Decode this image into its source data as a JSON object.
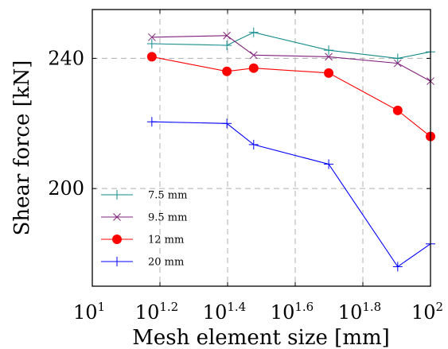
{
  "chart_data": {
    "type": "line",
    "xlabel": "Mesh element size [mm]",
    "ylabel": "Shear force [kN]",
    "xscale": "log10",
    "xlim": [
      10,
      100
    ],
    "ylim": [
      170,
      255
    ],
    "x_ticks": [
      {
        "value": 10,
        "base": "10",
        "exp": "1"
      },
      {
        "value": 15.849,
        "base": "10",
        "exp": "1.2"
      },
      {
        "value": 25.119,
        "base": "10",
        "exp": "1.4"
      },
      {
        "value": 39.811,
        "base": "10",
        "exp": "1.6"
      },
      {
        "value": 63.096,
        "base": "10",
        "exp": "1.8"
      },
      {
        "value": 100,
        "base": "10",
        "exp": "2"
      }
    ],
    "y_ticks": [
      {
        "value": 200,
        "label": "200"
      },
      {
        "value": 240,
        "label": "240"
      }
    ],
    "grid": true,
    "legend_position": "bottom-left",
    "series": [
      {
        "name": "7.5 mm",
        "color": "#138b8b",
        "marker": "plus",
        "x": [
          15,
          25,
          30,
          50,
          80,
          100
        ],
        "y": [
          244.5,
          244,
          248,
          242.5,
          240,
          242
        ]
      },
      {
        "name": "9.5 mm",
        "color": "#80207a",
        "marker": "cross",
        "x": [
          15,
          25,
          30,
          50,
          80,
          100
        ],
        "y": [
          246.5,
          247,
          241,
          240.5,
          238.5,
          233
        ]
      },
      {
        "name": "12 mm",
        "color": "#ff0000",
        "marker": "dot",
        "x": [
          15,
          25,
          30,
          50,
          80,
          100
        ],
        "y": [
          240.5,
          236,
          237,
          235.5,
          224,
          216
        ]
      },
      {
        "name": "20 mm",
        "color": "#0000ff",
        "marker": "plus",
        "x": [
          15,
          25,
          30,
          50,
          80,
          100
        ],
        "y": [
          220.5,
          220,
          213.5,
          207.5,
          176,
          183
        ]
      }
    ]
  }
}
